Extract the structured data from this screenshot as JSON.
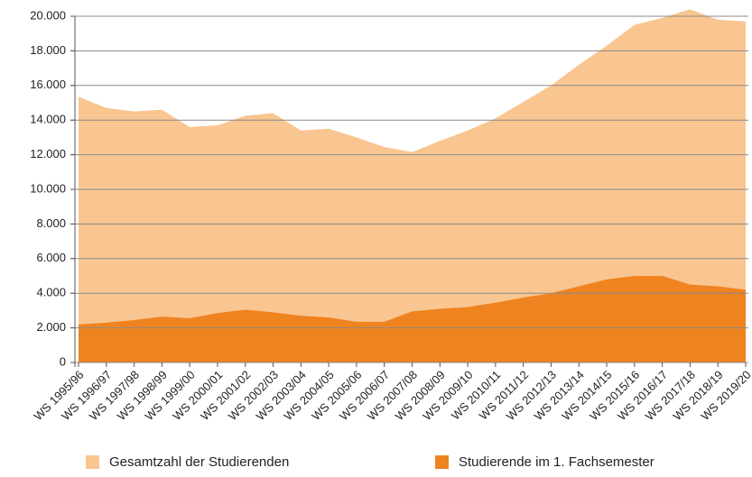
{
  "chart_data": {
    "type": "area",
    "categories": [
      "WS 1995/96",
      "WS 1996/97",
      "WS 1997/98",
      "WS 1998/99",
      "WS 1999/00",
      "WS 2000/01",
      "WS 2001/02",
      "WS 2002/03",
      "WS 2003/04",
      "WS 2004/05",
      "WS 2005/06",
      "WS 2006/07",
      "WS 2007/08",
      "WS 2008/09",
      "WS 2009/10",
      "WS 2010/11",
      "WS 2011/12",
      "WS 2012/13",
      "WS 2013/14",
      "WS 2014/15",
      "WS 2015/16",
      "WS 2016/17",
      "WS 2017/18",
      "WS 2018/19",
      "WS 2019/20"
    ],
    "series": [
      {
        "name": "Gesamtzahl der Studierenden",
        "color": "#f9c590",
        "values": [
          15350,
          14700,
          14500,
          14600,
          13600,
          13700,
          14250,
          14400,
          13400,
          13500,
          13000,
          12450,
          12150,
          12800,
          13400,
          14100,
          15050,
          16000,
          17200,
          18300,
          19500,
          19900,
          20400,
          19800,
          19700
        ]
      },
      {
        "name": "Studierende im 1. Fachsemester",
        "color": "#ee8320",
        "values": [
          2200,
          2300,
          2450,
          2650,
          2550,
          2850,
          3050,
          2900,
          2700,
          2600,
          2350,
          2350,
          2950,
          3100,
          3200,
          3450,
          3750,
          4000,
          4400,
          4800,
          5000,
          5000,
          4500,
          4400,
          4200
        ]
      }
    ],
    "ylim": [
      0,
      20000
    ],
    "yticks": [
      0,
      {
        "value": 2000,
        "label": "2.000"
      },
      {
        "value": 4000,
        "label": "4.000"
      },
      {
        "value": 6000,
        "label": "6.000"
      },
      {
        "value": 8000,
        "label": "8.000"
      },
      {
        "value": 10000,
        "label": "10.000"
      },
      {
        "value": 12000,
        "label": "12.000"
      },
      {
        "value": 14000,
        "label": "14.000"
      },
      {
        "value": 16000,
        "label": "16.000"
      },
      {
        "value": 18000,
        "label": "18.000"
      },
      {
        "value": 20000,
        "label": "20.000"
      }
    ],
    "grid": true,
    "legend": "bottom"
  }
}
